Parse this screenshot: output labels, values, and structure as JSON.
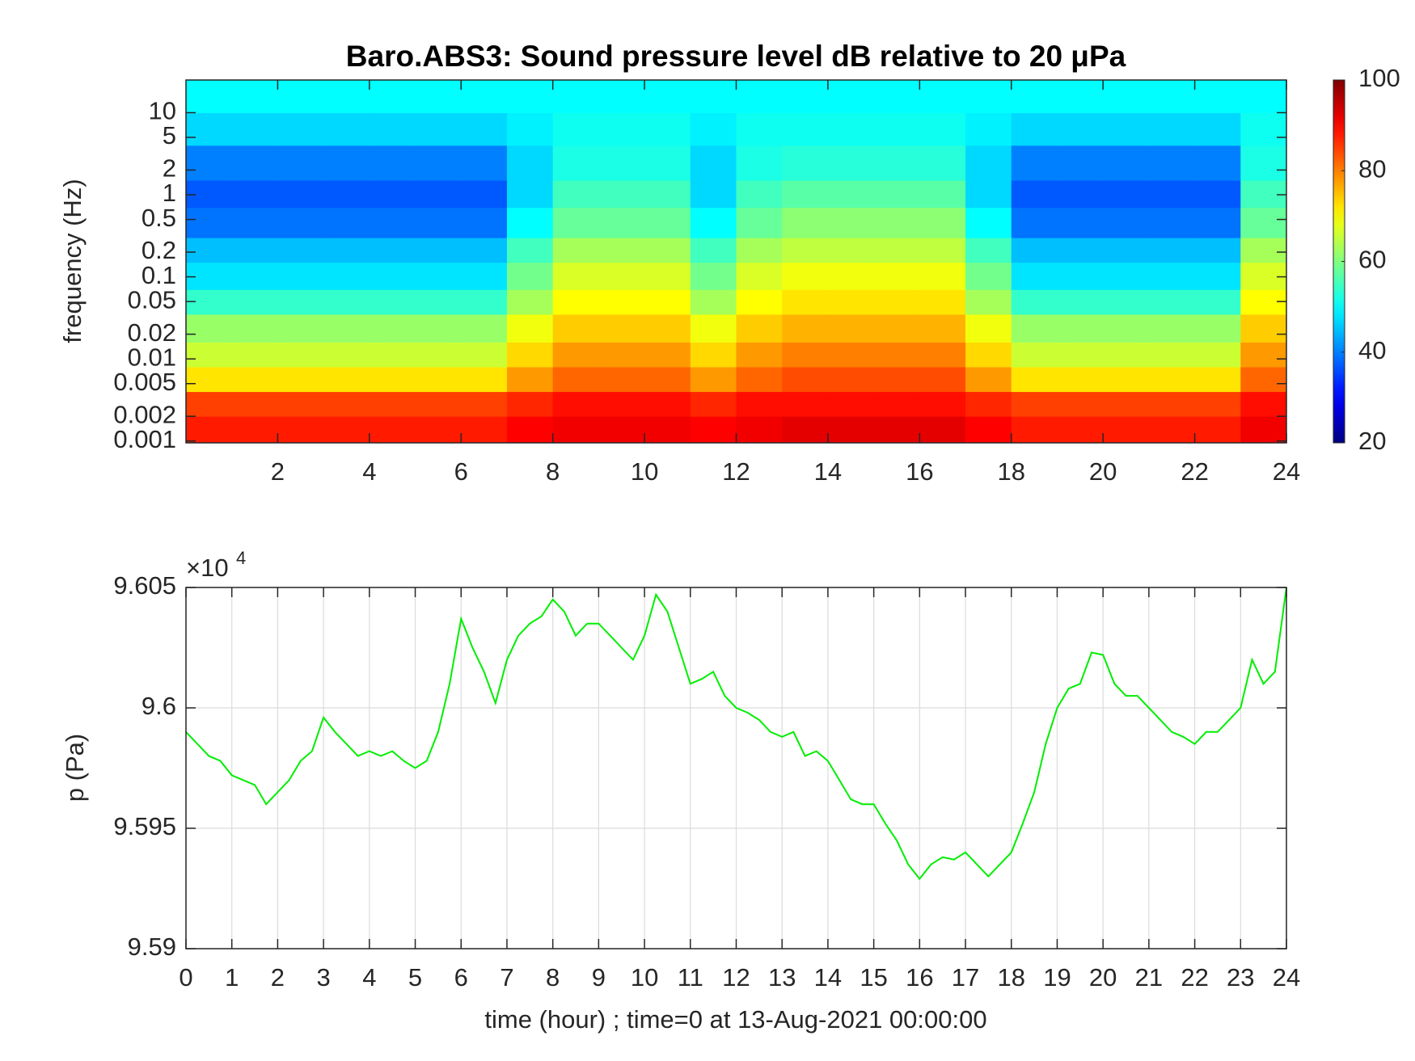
{
  "chart_data": [
    {
      "type": "heatmap",
      "title": "Baro.ABS3: Sound pressure level dB relative to 20 μPa",
      "ylabel": "frequency (Hz)",
      "ylog": true,
      "colormap": "jet",
      "xlim": [
        0,
        24
      ],
      "xticks": [
        2,
        4,
        6,
        8,
        10,
        12,
        14,
        16,
        18,
        20,
        22,
        24
      ],
      "ylim": [
        0.00095,
        25
      ],
      "yticks": [
        0.001,
        0.002,
        0.005,
        0.01,
        0.02,
        0.05,
        0.1,
        0.2,
        0.5,
        1,
        2,
        5,
        10
      ],
      "clim": [
        20,
        100
      ],
      "cticks": [
        20,
        40,
        60,
        80,
        100
      ],
      "xbins": [
        0,
        1,
        2,
        3,
        4,
        5,
        6,
        7,
        8,
        9,
        10,
        11,
        12,
        13,
        14,
        15,
        16,
        17,
        18,
        19,
        20,
        21,
        22,
        23,
        24
      ],
      "ybins": [
        0.00095,
        0.002,
        0.004,
        0.008,
        0.016,
        0.035,
        0.07,
        0.15,
        0.3,
        0.7,
        1.5,
        4,
        10,
        25
      ],
      "z": [
        [
          88,
          88,
          88,
          88,
          88,
          88,
          88,
          90,
          91,
          91,
          91,
          90,
          91,
          92,
          92,
          92,
          92,
          90,
          88,
          88,
          88,
          88,
          88,
          91
        ],
        [
          85,
          85,
          85,
          85,
          85,
          85,
          85,
          87,
          89,
          89,
          89,
          87,
          89,
          89,
          89,
          89,
          89,
          87,
          85,
          85,
          85,
          85,
          85,
          89
        ],
        [
          72,
          72,
          72,
          72,
          72,
          72,
          72,
          78,
          82,
          82,
          82,
          78,
          82,
          84,
          84,
          84,
          84,
          78,
          72,
          72,
          72,
          72,
          72,
          82
        ],
        [
          66,
          66,
          66,
          66,
          66,
          66,
          66,
          73,
          78,
          78,
          78,
          73,
          78,
          80,
          80,
          80,
          80,
          73,
          66,
          66,
          66,
          66,
          66,
          78
        ],
        [
          62,
          62,
          62,
          62,
          62,
          62,
          62,
          69,
          74,
          74,
          74,
          69,
          74,
          76,
          76,
          76,
          76,
          69,
          62,
          62,
          62,
          62,
          62,
          74
        ],
        [
          54,
          54,
          54,
          54,
          54,
          54,
          54,
          63,
          70,
          70,
          70,
          63,
          70,
          72,
          72,
          72,
          72,
          63,
          54,
          54,
          54,
          54,
          54,
          70
        ],
        [
          48,
          48,
          48,
          48,
          48,
          48,
          48,
          59,
          67,
          67,
          67,
          59,
          67,
          69,
          69,
          69,
          69,
          59,
          48,
          48,
          48,
          48,
          48,
          67
        ],
        [
          45,
          45,
          45,
          45,
          45,
          45,
          45,
          55,
          63,
          63,
          63,
          55,
          63,
          65,
          65,
          65,
          65,
          55,
          45,
          45,
          45,
          45,
          45,
          63
        ],
        [
          39,
          39,
          39,
          39,
          39,
          39,
          39,
          50,
          58,
          58,
          58,
          50,
          58,
          61,
          61,
          61,
          61,
          50,
          39,
          39,
          39,
          39,
          39,
          58
        ],
        [
          37,
          37,
          37,
          37,
          37,
          37,
          37,
          47,
          55,
          55,
          55,
          47,
          55,
          57,
          57,
          57,
          57,
          47,
          37,
          37,
          37,
          37,
          37,
          55
        ],
        [
          40,
          40,
          40,
          40,
          40,
          40,
          40,
          47,
          52,
          52,
          52,
          47,
          52,
          53,
          53,
          53,
          53,
          47,
          40,
          40,
          40,
          40,
          40,
          52
        ],
        [
          47,
          47,
          47,
          47,
          47,
          47,
          47,
          49,
          51,
          51,
          51,
          49,
          51,
          51,
          51,
          51,
          51,
          49,
          47,
          47,
          47,
          47,
          47,
          51
        ],
        [
          50,
          50,
          50,
          50,
          50,
          50,
          50,
          50,
          50,
          50,
          50,
          50,
          50,
          50,
          50,
          50,
          50,
          50,
          50,
          50,
          50,
          50,
          50,
          50
        ]
      ]
    },
    {
      "type": "line",
      "xlabel": "time (hour) ; time=0 at 13-Aug-2021 00:00:00",
      "ylabel": "p (Pa)",
      "y_multiplier": {
        "base": "×10",
        "exponent": "4"
      },
      "grid": true,
      "color": "#00ee00",
      "xlim": [
        0,
        24
      ],
      "xticks": [
        0,
        1,
        2,
        3,
        4,
        5,
        6,
        7,
        8,
        9,
        10,
        11,
        12,
        13,
        14,
        15,
        16,
        17,
        18,
        19,
        20,
        21,
        22,
        23,
        24
      ],
      "ylim": [
        95900,
        96050
      ],
      "yticks": [
        {
          "value": 95900,
          "label": "9.59"
        },
        {
          "value": 95950,
          "label": "9.595"
        },
        {
          "value": 96000,
          "label": "9.6"
        },
        {
          "value": 96050,
          "label": "9.605"
        }
      ],
      "x": [
        0,
        0.25,
        0.5,
        0.75,
        1,
        1.25,
        1.5,
        1.75,
        2,
        2.25,
        2.5,
        2.75,
        3,
        3.25,
        3.5,
        3.75,
        4,
        4.25,
        4.5,
        4.75,
        5,
        5.25,
        5.5,
        5.75,
        6,
        6.25,
        6.5,
        6.75,
        7,
        7.25,
        7.5,
        7.75,
        8,
        8.25,
        8.5,
        8.75,
        9,
        9.25,
        9.5,
        9.75,
        10,
        10.25,
        10.5,
        10.75,
        11,
        11.25,
        11.5,
        11.75,
        12,
        12.25,
        12.5,
        12.75,
        13,
        13.25,
        13.5,
        13.75,
        14,
        14.25,
        14.5,
        14.75,
        15,
        15.25,
        15.5,
        15.75,
        16,
        16.25,
        16.5,
        16.75,
        17,
        17.25,
        17.5,
        17.75,
        18,
        18.25,
        18.5,
        18.75,
        19,
        19.25,
        19.5,
        19.75,
        20,
        20.25,
        20.5,
        20.75,
        21,
        21.25,
        21.5,
        21.75,
        22,
        22.25,
        22.5,
        22.75,
        23,
        23.25,
        23.5,
        23.75,
        24
      ],
      "values": [
        95990,
        95985,
        95980,
        95978,
        95972,
        95970,
        95968,
        95960,
        95965,
        95970,
        95978,
        95982,
        95996,
        95990,
        95985,
        95980,
        95982,
        95980,
        95982,
        95978,
        95975,
        95978,
        95990,
        96010,
        96037,
        96025,
        96015,
        96002,
        96020,
        96030,
        96035,
        96038,
        96045,
        96040,
        96030,
        96035,
        96035,
        96030,
        96025,
        96020,
        96030,
        96047,
        96040,
        96025,
        96010,
        96012,
        96015,
        96005,
        96000,
        95998,
        95995,
        95990,
        95988,
        95990,
        95980,
        95982,
        95978,
        95970,
        95962,
        95960,
        95960,
        95952,
        95945,
        95935,
        95929,
        95935,
        95938,
        95937,
        95940,
        95935,
        95930,
        95935,
        95940,
        95952,
        95965,
        95985,
        96000,
        96008,
        96010,
        96023,
        96022,
        96010,
        96005,
        96005,
        96000,
        95995,
        95990,
        95988,
        95985,
        95990,
        95990,
        95995,
        96000,
        96020,
        96010,
        96015,
        96050
      ]
    }
  ]
}
